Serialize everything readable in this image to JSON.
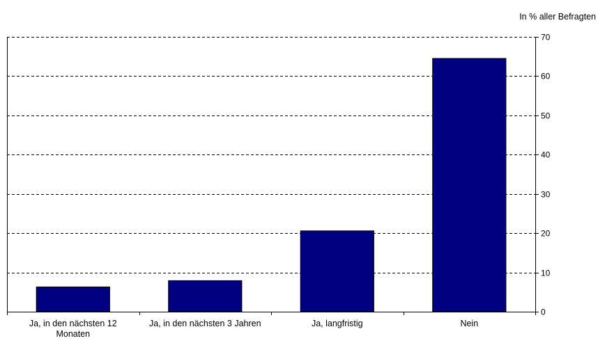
{
  "chart_data": {
    "type": "bar",
    "title": "",
    "unit_label": "In % aller Befragten",
    "xlabel": "",
    "ylabel": "",
    "categories": [
      "Ja, in den nächsten 12 Monaten",
      "Ja, in den nächsten 3 Jahren",
      "Ja, langfristig",
      "Nein"
    ],
    "category_label_lines": [
      [
        "Ja, in den nächsten 12",
        "Monaten"
      ],
      [
        "Ja, in den nächsten 3 Jahren"
      ],
      [
        "Ja, langfristig"
      ],
      [
        "Nein"
      ]
    ],
    "values": [
      6.3,
      7.9,
      20.6,
      64.5
    ],
    "ylim": [
      0,
      70
    ],
    "yticks": [
      0,
      10,
      20,
      30,
      40,
      50,
      60,
      70
    ],
    "y_axis_side": "right",
    "grid": "horizontal dashed",
    "legend": "none",
    "bar_color": "#000080"
  }
}
